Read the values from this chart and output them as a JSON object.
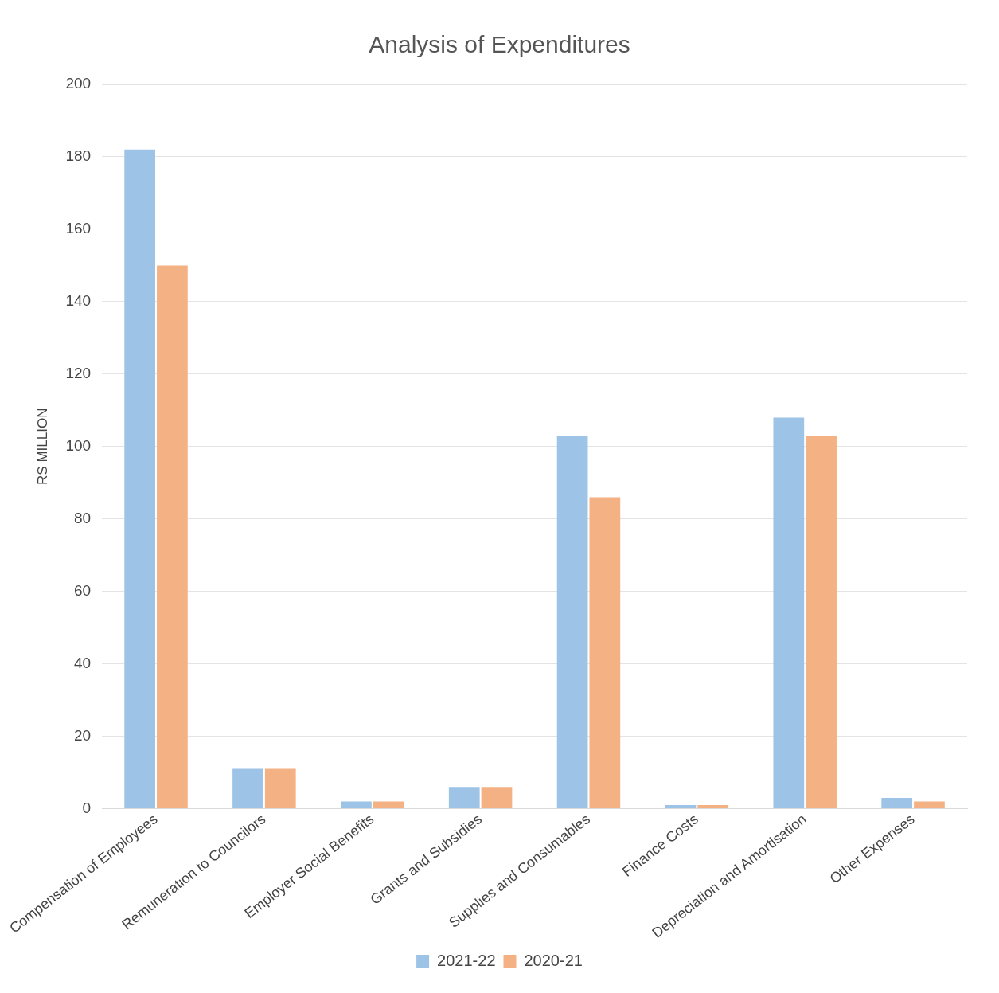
{
  "chart_data": {
    "type": "bar",
    "title": "Analysis of Expenditures",
    "ylabel": "RS MILLION",
    "categories": [
      "Compensation of Employees",
      "Remuneration to Councilors",
      "Employer Social Benefits",
      "Grants and Subsidies",
      "Supplies and Consumables",
      "Finance Costs",
      "Depreciation and Amortisation",
      "Other Expenses"
    ],
    "series": [
      {
        "name": "2021-22",
        "color": "#9dc3e6",
        "values": [
          182,
          11,
          2,
          6,
          103,
          1,
          108,
          3
        ]
      },
      {
        "name": "2020-21",
        "color": "#f4b183",
        "values": [
          150,
          11,
          2,
          6,
          86,
          1,
          103,
          2
        ]
      }
    ],
    "ylim": [
      0,
      200
    ],
    "yticks": [
      0,
      20,
      40,
      60,
      80,
      100,
      120,
      140,
      160,
      180,
      200
    ],
    "grid": "y",
    "legend": "bottom"
  }
}
